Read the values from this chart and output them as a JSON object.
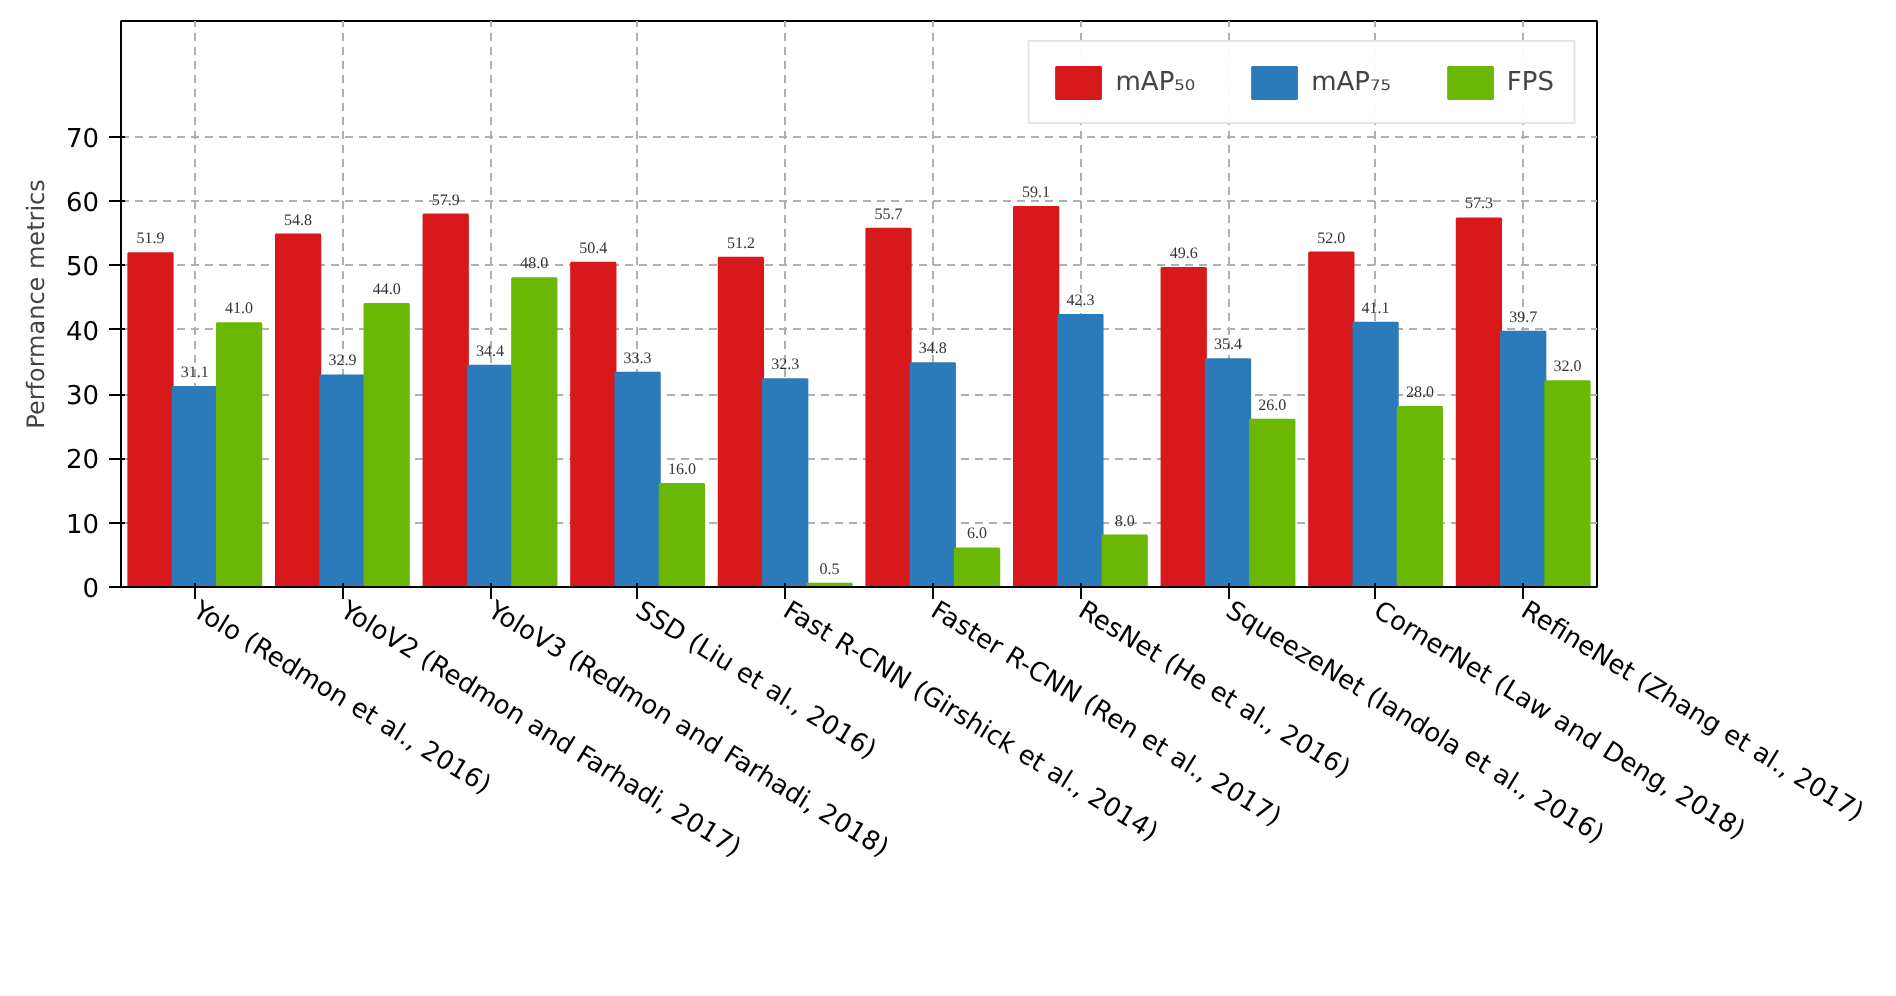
{
  "chart_data": {
    "type": "bar",
    "ylabel": "Performance metrics",
    "categories": [
      "Yolo (Redmon et al., 2016)",
      "YoloV2 (Redmon and Farhadi, 2017)",
      "YoloV3 (Redmon and Farhadi, 2018)",
      "SSD (Liu et al., 2016)",
      "Fast R-CNN (Girshick et al., 2014)",
      "Faster R-CNN (Ren et al., 2017)",
      "ResNet (He et al., 2016)",
      "SqueezeNet (Iandola et al., 2016)",
      "CornerNet (Law and Deng, 2018)",
      "RefineNet (Zhang et al., 2017)"
    ],
    "series": [
      {
        "name": "mAP₅₀",
        "color": "#d7191c",
        "values": [
          51.9,
          54.8,
          57.9,
          50.4,
          51.2,
          55.7,
          59.1,
          49.6,
          52.0,
          57.3
        ],
        "value_labels": [
          "51.9",
          "54.8",
          "57.9",
          "50.4",
          "51.2",
          "55.7",
          "59.1",
          "49.6",
          "52.0",
          "57.3"
        ]
      },
      {
        "name": "mAP₇₅",
        "color": "#2b7bba",
        "values": [
          31.1,
          32.9,
          34.4,
          33.3,
          32.3,
          34.8,
          42.3,
          35.4,
          41.1,
          39.7
        ],
        "value_labels": [
          "31.1",
          "32.9",
          "34.4",
          "33.3",
          "32.3",
          "34.8",
          "42.3",
          "35.4",
          "41.1",
          "39.7"
        ]
      },
      {
        "name": "FPS",
        "color": "#6ab804",
        "values": [
          41.0,
          44.0,
          48.0,
          16.0,
          0.5,
          6.0,
          8.0,
          26.0,
          28.0,
          32.0
        ],
        "value_labels": [
          "41.0",
          "44.0",
          "48.0",
          "16.0",
          "0.5",
          "6.0",
          "8.0",
          "26.0",
          "28.0",
          "32.0"
        ]
      }
    ],
    "ylim": [
      0,
      88
    ],
    "yticks": [
      0,
      10,
      20,
      30,
      40,
      50,
      60,
      70
    ],
    "grid": true,
    "legend": "top right"
  }
}
